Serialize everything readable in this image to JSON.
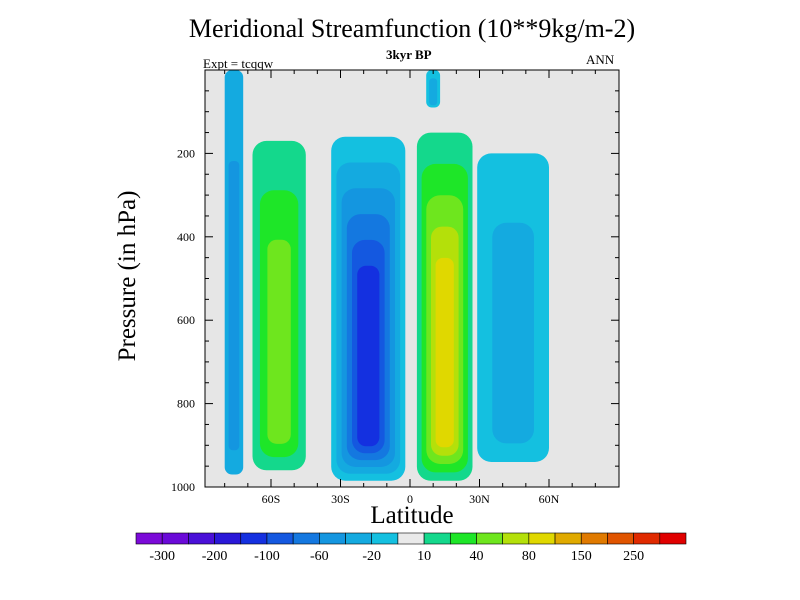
{
  "chart_data": {
    "type": "contour",
    "title": "Meridional Streamfunction (10**9kg/m-2)",
    "subtitle": "3kyr BP",
    "left_annotation": "Expt = tcqqw",
    "right_annotation": "ANN",
    "xlabel": "Latitude",
    "ylabel": "Pressure (in hPa)",
    "xlim": [
      -90,
      90
    ],
    "ylim": [
      1000,
      0
    ],
    "x_ticks": [
      {
        "value": -60,
        "label": "60S"
      },
      {
        "value": -30,
        "label": "30S"
      },
      {
        "value": 0,
        "label": "0"
      },
      {
        "value": 30,
        "label": "30N"
      },
      {
        "value": 60,
        "label": "60N"
      }
    ],
    "y_ticks": [
      {
        "value": 200,
        "label": "200"
      },
      {
        "value": 400,
        "label": "400"
      },
      {
        "value": 600,
        "label": "600"
      },
      {
        "value": 800,
        "label": "800"
      },
      {
        "value": 1000,
        "label": "1000"
      }
    ],
    "missing_color": "#e6e6e6",
    "colorbar": {
      "colors": [
        "#7b0ad8",
        "#6a0ad8",
        "#4a10d8",
        "#2a18d8",
        "#1430e0",
        "#1458e0",
        "#1478e0",
        "#1496e0",
        "#14aae0",
        "#14c0e0",
        "#eaeaea",
        "#14d88c",
        "#1ee628",
        "#6ee61e",
        "#b4e00a",
        "#e0d800",
        "#e0aa00",
        "#e07a00",
        "#e05400",
        "#e02a00",
        "#e00000"
      ],
      "labels": [
        {
          "after_box": 1,
          "text": "-300"
        },
        {
          "after_box": 3,
          "text": "-200"
        },
        {
          "after_box": 5,
          "text": "-100"
        },
        {
          "after_box": 7,
          "text": "-60"
        },
        {
          "after_box": 9,
          "text": "-20"
        },
        {
          "after_box": 11,
          "text": "10"
        },
        {
          "after_box": 13,
          "text": "40"
        },
        {
          "after_box": 15,
          "text": "80"
        },
        {
          "after_box": 17,
          "text": "150"
        },
        {
          "after_box": 19,
          "text": "250"
        }
      ]
    },
    "cells": [
      {
        "name": "southern-polar-cell",
        "lat_range": [
          -80,
          -72
        ],
        "p_top": 0,
        "p_bottom": 970,
        "sign": "negative",
        "levels": [
          {
            "value": -20,
            "color": "#14aae0"
          },
          {
            "value": -60,
            "color": "#1496e0"
          }
        ]
      },
      {
        "name": "southern-ferrel-cell",
        "lat_range": [
          -68,
          -45
        ],
        "p_top": 170,
        "p_bottom": 960,
        "sign": "positive",
        "levels": [
          {
            "value": 10,
            "color": "#14d88c"
          },
          {
            "value": 40,
            "color": "#1ee628"
          },
          {
            "value": 80,
            "color": "#6ee61e"
          }
        ]
      },
      {
        "name": "southern-hadley-cell",
        "lat_range": [
          -34,
          -2
        ],
        "p_top": 160,
        "p_bottom": 985,
        "sign": "negative",
        "levels": [
          {
            "value": -20,
            "color": "#14c0e0"
          },
          {
            "value": -60,
            "color": "#14aae0"
          },
          {
            "value": -100,
            "color": "#1496e0"
          },
          {
            "value": -150,
            "color": "#1478e0"
          },
          {
            "value": -200,
            "color": "#1458e0"
          },
          {
            "value": -250,
            "color": "#1430e0"
          }
        ]
      },
      {
        "name": "northern-hadley-cell",
        "lat_range": [
          3,
          27
        ],
        "p_top": 150,
        "p_bottom": 985,
        "sign": "positive",
        "levels": [
          {
            "value": 10,
            "color": "#14d88c"
          },
          {
            "value": 40,
            "color": "#1ee628"
          },
          {
            "value": 80,
            "color": "#6ee61e"
          },
          {
            "value": 120,
            "color": "#b4e00a"
          },
          {
            "value": 150,
            "color": "#e0d800"
          }
        ]
      },
      {
        "name": "northern-ferrel-cell",
        "lat_range": [
          29,
          60
        ],
        "p_top": 200,
        "p_bottom": 940,
        "sign": "negative",
        "levels": [
          {
            "value": -20,
            "color": "#14c0e0"
          },
          {
            "value": -60,
            "color": "#14aae0"
          }
        ]
      },
      {
        "name": "equatorial-upper-sliver",
        "lat_range": [
          7,
          13
        ],
        "p_top": 0,
        "p_bottom": 90,
        "sign": "negative",
        "levels": [
          {
            "value": -20,
            "color": "#14c0e0"
          },
          {
            "value": -60,
            "color": "#14aae0"
          }
        ]
      }
    ]
  }
}
